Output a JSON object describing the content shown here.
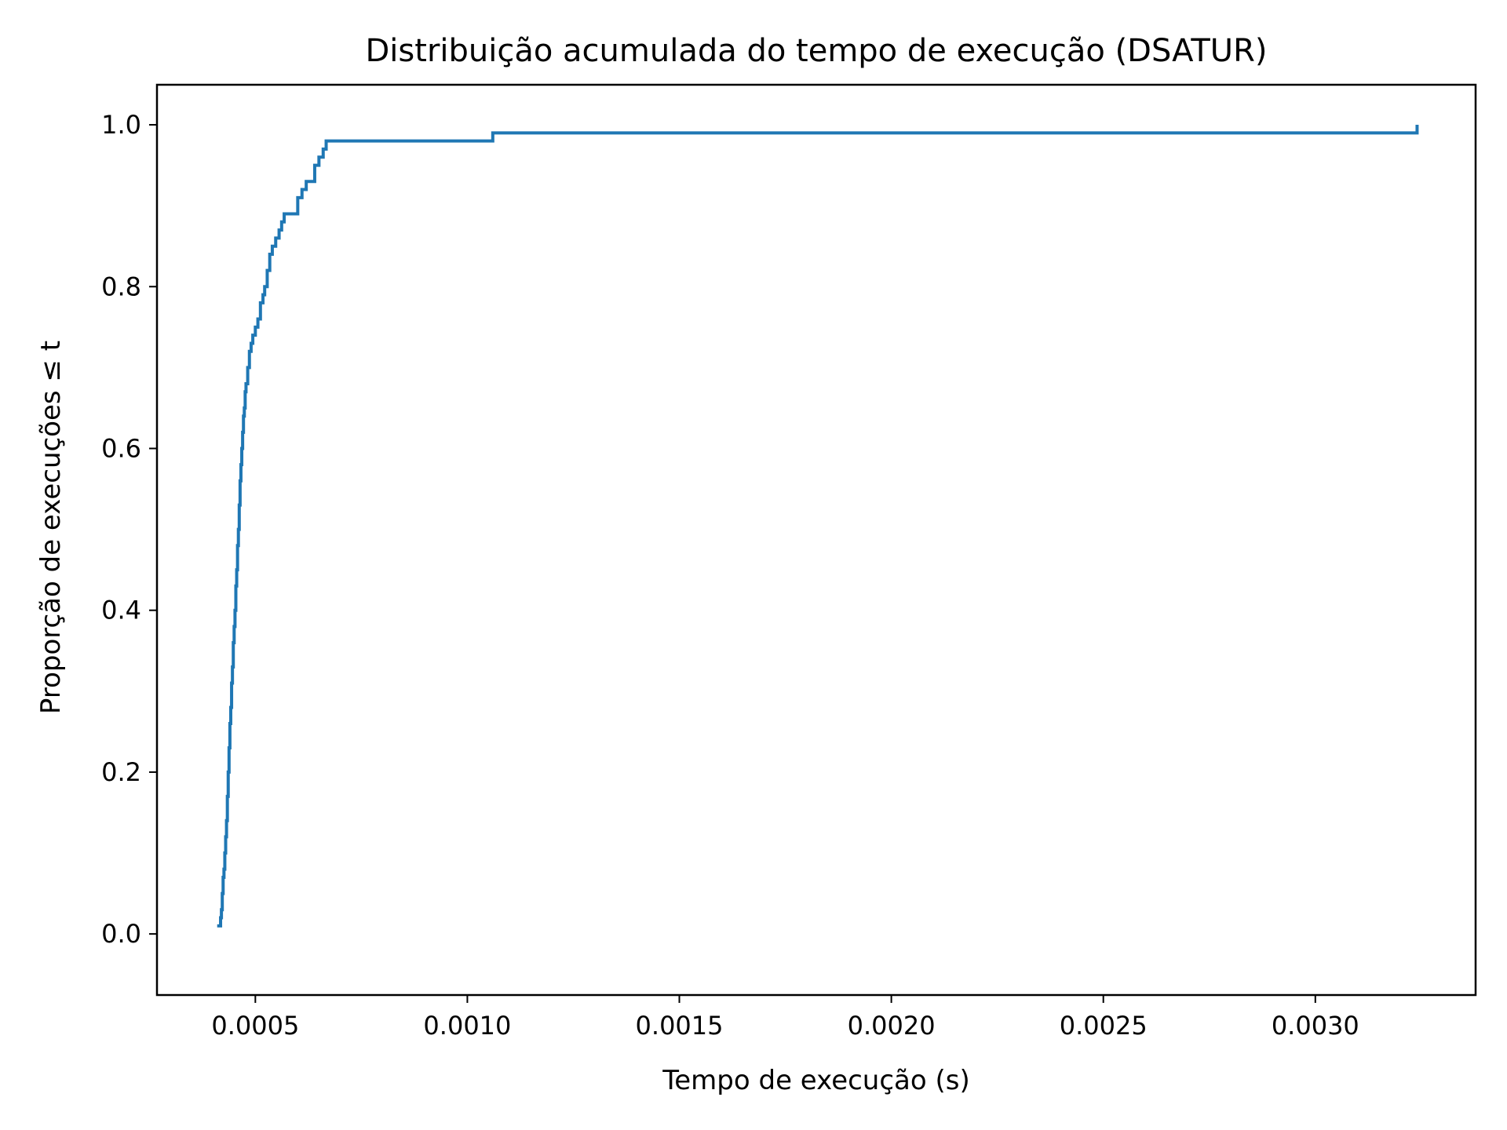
{
  "chart_data": {
    "type": "line",
    "step": true,
    "title": "Distribuição acumulada do tempo de execução (DSATUR)",
    "xlabel": "Tempo de execução (s)",
    "ylabel": "Proporção de execuções ≤ t",
    "xlim": [
      0.000268,
      0.003378
    ],
    "ylim": [
      -0.0755,
      1.0495
    ],
    "xticks": [
      0.0005,
      0.001,
      0.0015,
      0.002,
      0.0025,
      0.003
    ],
    "xtick_labels": [
      "0.0005",
      "0.0010",
      "0.0015",
      "0.0020",
      "0.0025",
      "0.0030"
    ],
    "yticks": [
      0.0,
      0.2,
      0.4,
      0.6,
      0.8,
      1.0
    ],
    "ytick_labels": [
      "0.0",
      "0.2",
      "0.4",
      "0.6",
      "0.8",
      "1.0"
    ],
    "grid": false,
    "legend": false,
    "series": [
      {
        "color": "#1f77b4",
        "x": [
          0.00041,
          0.000418,
          0.00042,
          0.000422,
          0.000424,
          0.000426,
          0.000428,
          0.00043,
          0.000432,
          0.000434,
          0.000436,
          0.000438,
          0.00044,
          0.000442,
          0.000444,
          0.000446,
          0.000448,
          0.00045,
          0.000452,
          0.000454,
          0.000456,
          0.000458,
          0.00046,
          0.000462,
          0.000464,
          0.000466,
          0.000468,
          0.00047,
          0.000472,
          0.000474,
          0.000476,
          0.000478,
          0.000482,
          0.000486,
          0.00049,
          0.000494,
          0.0005,
          0.000506,
          0.000512,
          0.000518,
          0.000522,
          0.000528,
          0.000534,
          0.00054,
          0.000548,
          0.000556,
          0.000562,
          0.000568,
          0.00058,
          0.0006,
          0.00061,
          0.00062,
          0.00064,
          0.00065,
          0.00066,
          0.000667,
          0.00106,
          0.00324
        ],
        "y": [
          0.01,
          0.02,
          0.03,
          0.05,
          0.07,
          0.08,
          0.1,
          0.12,
          0.14,
          0.17,
          0.2,
          0.23,
          0.26,
          0.28,
          0.31,
          0.33,
          0.36,
          0.38,
          0.4,
          0.43,
          0.45,
          0.48,
          0.5,
          0.53,
          0.56,
          0.58,
          0.6,
          0.62,
          0.64,
          0.65,
          0.67,
          0.68,
          0.7,
          0.72,
          0.73,
          0.74,
          0.75,
          0.76,
          0.78,
          0.79,
          0.8,
          0.82,
          0.84,
          0.85,
          0.86,
          0.87,
          0.88,
          0.89,
          0.89,
          0.91,
          0.92,
          0.93,
          0.95,
          0.96,
          0.97,
          0.98,
          0.99,
          1.0
        ]
      }
    ]
  }
}
